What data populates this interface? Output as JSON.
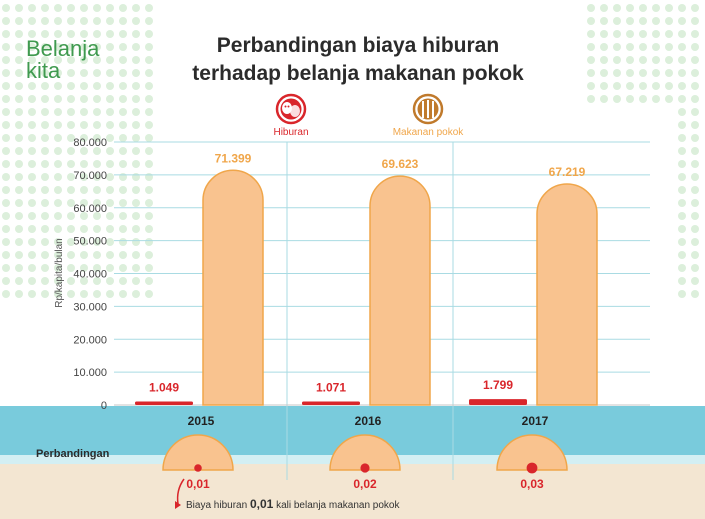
{
  "brand": {
    "line1": "Belanja",
    "line2": "kita"
  },
  "title": {
    "line1": "Perbandingan biaya hiburan",
    "line2": "terhadap belanja makanan pokok"
  },
  "legend": [
    {
      "label": "Hiburan",
      "icon": "theater-masks-icon",
      "color": "#d9262b"
    },
    {
      "label": "Makanan pokok",
      "icon": "wheat-icon",
      "color": "#f0a64a"
    }
  ],
  "colors": {
    "hiburan": "#d9262b",
    "makanan": "#f9c38f",
    "makanan_stroke": "#f0a64a",
    "dots": "#dcefdb",
    "grid": "#a9dbe3",
    "sea": "#79cbdc",
    "sand": "#f3e6d2"
  },
  "chart_data": {
    "type": "bar",
    "categories": [
      "2015",
      "2016",
      "2017"
    ],
    "ylabel": "Rp/kapita/bulan",
    "ylim": [
      0,
      80000
    ],
    "yticks": [
      "0",
      "10.000",
      "20.000",
      "30.000",
      "40.000",
      "50.000",
      "60.000",
      "70.000",
      "80.000"
    ],
    "series": [
      {
        "name": "Hiburan",
        "values": [
          1049,
          1071,
          1799
        ],
        "labels": [
          "1.049",
          "1.071",
          "1.799"
        ]
      },
      {
        "name": "Makanan pokok",
        "values": [
          71399,
          69623,
          67219
        ],
        "labels": [
          "71.399",
          "69.623",
          "67.219"
        ]
      }
    ],
    "grid": true,
    "legend_position": "top-center"
  },
  "ratio": {
    "label": "Perbandingan",
    "values": [
      0.01,
      0.02,
      0.03
    ],
    "labels": [
      "0,01",
      "0,02",
      "0,03"
    ]
  },
  "footnote": {
    "pre": "Biaya hiburan",
    "value": "0,01",
    "post": "kali belanja makanan pokok"
  }
}
